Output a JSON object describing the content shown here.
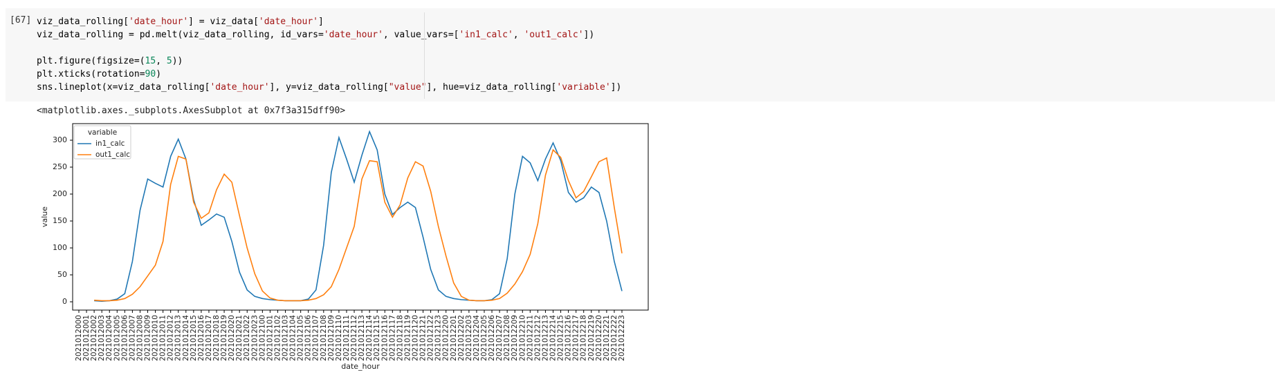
{
  "cell": {
    "prompt": "[67]",
    "code": [
      [
        {
          "text": "viz_data_rolling[",
          "color": "#000000"
        },
        {
          "text": "'date_hour'",
          "color": "#a31515"
        },
        {
          "text": "] = viz_data[",
          "color": "#000000"
        },
        {
          "text": "'date_hour'",
          "color": "#a31515"
        },
        {
          "text": "]",
          "color": "#000000"
        }
      ],
      [
        {
          "text": "viz_data_rolling = pd.melt(viz_data_rolling, id_vars=",
          "color": "#000000"
        },
        {
          "text": "'date_hour'",
          "color": "#a31515"
        },
        {
          "text": ", value_vars=[",
          "color": "#000000"
        },
        {
          "text": "'in1_calc'",
          "color": "#a31515"
        },
        {
          "text": ", ",
          "color": "#000000"
        },
        {
          "text": "'out1_calc'",
          "color": "#a31515"
        },
        {
          "text": "])",
          "color": "#000000"
        }
      ],
      [],
      [
        {
          "text": "plt.figure(figsize=(",
          "color": "#000000"
        },
        {
          "text": "15",
          "color": "#098658"
        },
        {
          "text": ", ",
          "color": "#000000"
        },
        {
          "text": "5",
          "color": "#098658"
        },
        {
          "text": "))",
          "color": "#000000"
        }
      ],
      [
        {
          "text": "plt.xticks(rotation=",
          "color": "#000000"
        },
        {
          "text": "90",
          "color": "#098658"
        },
        {
          "text": ")",
          "color": "#000000"
        }
      ],
      [
        {
          "text": "sns.lineplot(x=viz_data_rolling[",
          "color": "#000000"
        },
        {
          "text": "'date_hour'",
          "color": "#a31515"
        },
        {
          "text": "], y=viz_data_rolling[",
          "color": "#000000"
        },
        {
          "text": "\"value\"",
          "color": "#a31515"
        },
        {
          "text": "], hue=viz_data_rolling[",
          "color": "#000000"
        },
        {
          "text": "'variable'",
          "color": "#a31515"
        },
        {
          "text": "])",
          "color": "#000000"
        }
      ]
    ],
    "output": "<matplotlib.axes._subplots.AxesSubplot at 0x7f3a315dff90>"
  },
  "chart_data": {
    "type": "line",
    "x_label": "date_hour",
    "y_label": "value",
    "legend_title": "variable",
    "legend": "upper left",
    "categories": [
      "2021012000",
      "2021012001",
      "2021012002",
      "2021012003",
      "2021012004",
      "2021012005",
      "2021012006",
      "2021012007",
      "2021012008",
      "2021012009",
      "2021012010",
      "2021012011",
      "2021012012",
      "2021012013",
      "2021012014",
      "2021012015",
      "2021012016",
      "2021012017",
      "2021012018",
      "2021012019",
      "2021012020",
      "2021012021",
      "2021012022",
      "2021012023",
      "2021012100",
      "2021012101",
      "2021012102",
      "2021012103",
      "2021012104",
      "2021012105",
      "2021012106",
      "2021012107",
      "2021012108",
      "2021012109",
      "2021012110",
      "2021012111",
      "2021012112",
      "2021012113",
      "2021012114",
      "2021012115",
      "2021012116",
      "2021012117",
      "2021012118",
      "2021012119",
      "2021012120",
      "2021012121",
      "2021012122",
      "2021012123",
      "2021012200",
      "2021012201",
      "2021012202",
      "2021012203",
      "2021012204",
      "2021012205",
      "2021012206",
      "2021012207",
      "2021012208",
      "2021012209",
      "2021012210",
      "2021012211",
      "2021012212",
      "2021012213",
      "2021012214",
      "2021012215",
      "2021012216",
      "2021012217",
      "2021012218",
      "2021012219",
      "2021012220",
      "2021012221",
      "2021012222",
      "2021012223"
    ],
    "series": [
      {
        "name": "in1_calc",
        "color": "#1f77b4",
        "values": [
          null,
          null,
          2,
          1,
          2,
          5,
          15,
          75,
          170,
          228,
          220,
          213,
          270,
          302,
          265,
          190,
          142,
          152,
          163,
          157,
          112,
          55,
          22,
          10,
          6,
          4,
          3,
          2,
          2,
          2,
          5,
          22,
          105,
          240,
          305,
          265,
          222,
          272,
          316,
          282,
          200,
          162,
          175,
          185,
          175,
          120,
          60,
          22,
          10,
          6,
          4,
          3,
          2,
          2,
          4,
          15,
          80,
          200,
          270,
          258,
          225,
          265,
          295,
          262,
          203,
          185,
          193,
          213,
          203,
          150,
          75,
          20
        ]
      },
      {
        "name": "out1_calc",
        "color": "#ff7f0e",
        "values": [
          null,
          null,
          3,
          2,
          2,
          3,
          6,
          14,
          28,
          48,
          68,
          112,
          218,
          270,
          265,
          185,
          155,
          165,
          208,
          237,
          222,
          160,
          100,
          52,
          20,
          7,
          3,
          2,
          2,
          2,
          3,
          6,
          13,
          28,
          60,
          100,
          140,
          228,
          262,
          260,
          185,
          157,
          180,
          230,
          260,
          252,
          205,
          140,
          85,
          35,
          10,
          3,
          2,
          2,
          3,
          6,
          16,
          33,
          56,
          88,
          145,
          235,
          282,
          268,
          225,
          193,
          205,
          232,
          260,
          267,
          175,
          90
        ]
      }
    ],
    "ylim": [
      -15.4,
      330.8
    ],
    "yticks": [
      0,
      50,
      100,
      150,
      200,
      250,
      300
    ],
    "grid": false
  }
}
